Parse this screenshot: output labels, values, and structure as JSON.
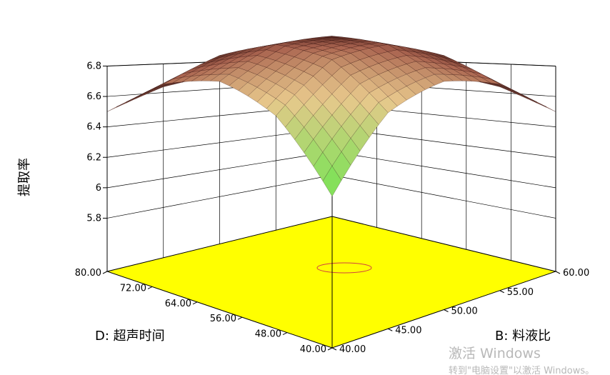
{
  "chart_data": {
    "type": "surface",
    "z_label": "提取率",
    "x_label": "D: 超声时间",
    "y_label": "B: 料液比",
    "x": [
      40,
      50,
      60,
      70,
      80
    ],
    "y": [
      40,
      45,
      50,
      55,
      60
    ],
    "z": [
      [
        5.87,
        6.15,
        6.34,
        6.46,
        6.5
      ],
      [
        6.14,
        6.39,
        6.55,
        6.64,
        6.64
      ],
      [
        6.34,
        6.55,
        6.68,
        6.73,
        6.71
      ],
      [
        6.46,
        6.64,
        6.73,
        6.75,
        6.69
      ],
      [
        6.5,
        6.64,
        6.71,
        6.69,
        6.6
      ]
    ],
    "xlim": [
      40,
      80
    ],
    "ylim": [
      40,
      60
    ],
    "zlim": [
      5.45,
      6.8
    ],
    "xticks": [
      {
        "value": 40,
        "label": "40.00"
      },
      {
        "value": 48,
        "label": "48.00"
      },
      {
        "value": 56,
        "label": "56.00"
      },
      {
        "value": 64,
        "label": "64.00"
      },
      {
        "value": 72,
        "label": "72.00"
      },
      {
        "value": 80,
        "label": "80.00"
      }
    ],
    "yticks": [
      {
        "value": 40,
        "label": "40.00"
      },
      {
        "value": 45,
        "label": "45.00"
      },
      {
        "value": 50,
        "label": "50.00"
      },
      {
        "value": 55,
        "label": "55.00"
      },
      {
        "value": 60,
        "label": "60.00"
      }
    ],
    "zticks": [
      5.8,
      6,
      6.2,
      6.4,
      6.6,
      6.8
    ],
    "floor_color": "#ffff00"
  },
  "watermark": {
    "title": "激活 Windows",
    "subtitle": "转到\"电脑设置\"以激活 Windows。"
  }
}
